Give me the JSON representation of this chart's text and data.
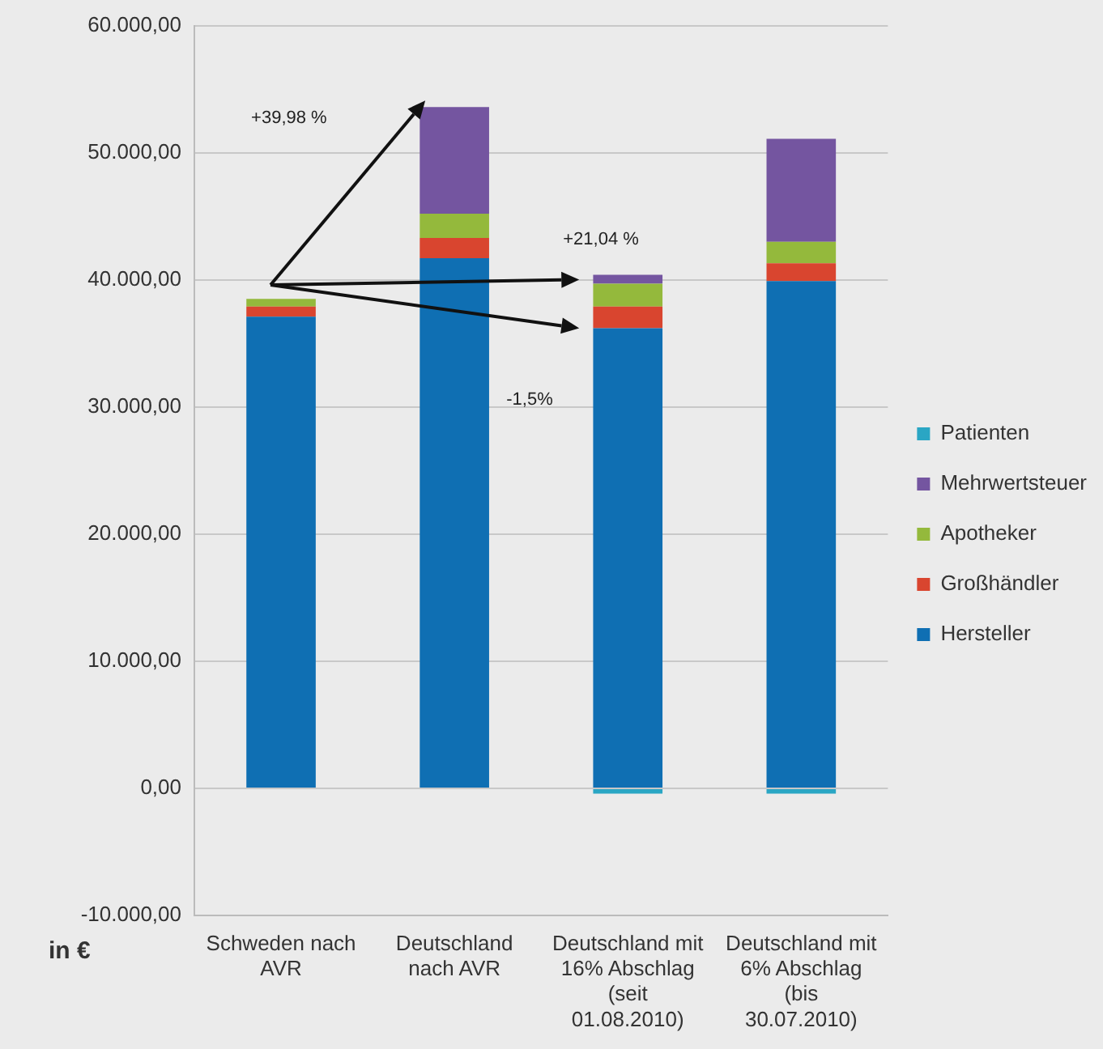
{
  "chart_data": {
    "type": "bar",
    "stacked": true,
    "categories": [
      "Schweden nach AVR",
      "Deutschland nach AVR",
      "Deutschland mit 16% Abschlag (seit 01.08.2010)",
      "Deutschland mit 6% Abschlag (bis 30.07.2010)"
    ],
    "series": [
      {
        "name": "Hersteller",
        "color": "#0f6fb3",
        "values": [
          37100,
          41700,
          36200,
          39900
        ]
      },
      {
        "name": "Großhändler",
        "color": "#d9452f",
        "values": [
          800,
          1600,
          1700,
          1400
        ]
      },
      {
        "name": "Apotheker",
        "color": "#94b93c",
        "values": [
          600,
          1900,
          1800,
          1700
        ]
      },
      {
        "name": "Mehrwertsteuer",
        "color": "#7455a0",
        "values": [
          0,
          8400,
          700,
          8100
        ]
      },
      {
        "name": "Patienten",
        "color": "#2aa6c4",
        "values": [
          0,
          0,
          -400,
          -400
        ]
      }
    ],
    "ylim": [
      -10000,
      60000
    ],
    "yticks": [
      {
        "value": -10000,
        "label": "-10.000,00"
      },
      {
        "value": 0,
        "label": "0,00"
      },
      {
        "value": 10000,
        "label": "10.000,00"
      },
      {
        "value": 20000,
        "label": "20.000,00"
      },
      {
        "value": 30000,
        "label": "30.000,00"
      },
      {
        "value": 40000,
        "label": "40.000,00"
      },
      {
        "value": 50000,
        "label": "50.000,00"
      },
      {
        "value": 60000,
        "label": "60.000,00"
      }
    ],
    "grid": "y",
    "legend": "right",
    "annotations": [
      "+39,98 %",
      "+21,04 %",
      "-1,5%",
      "in €"
    ]
  }
}
